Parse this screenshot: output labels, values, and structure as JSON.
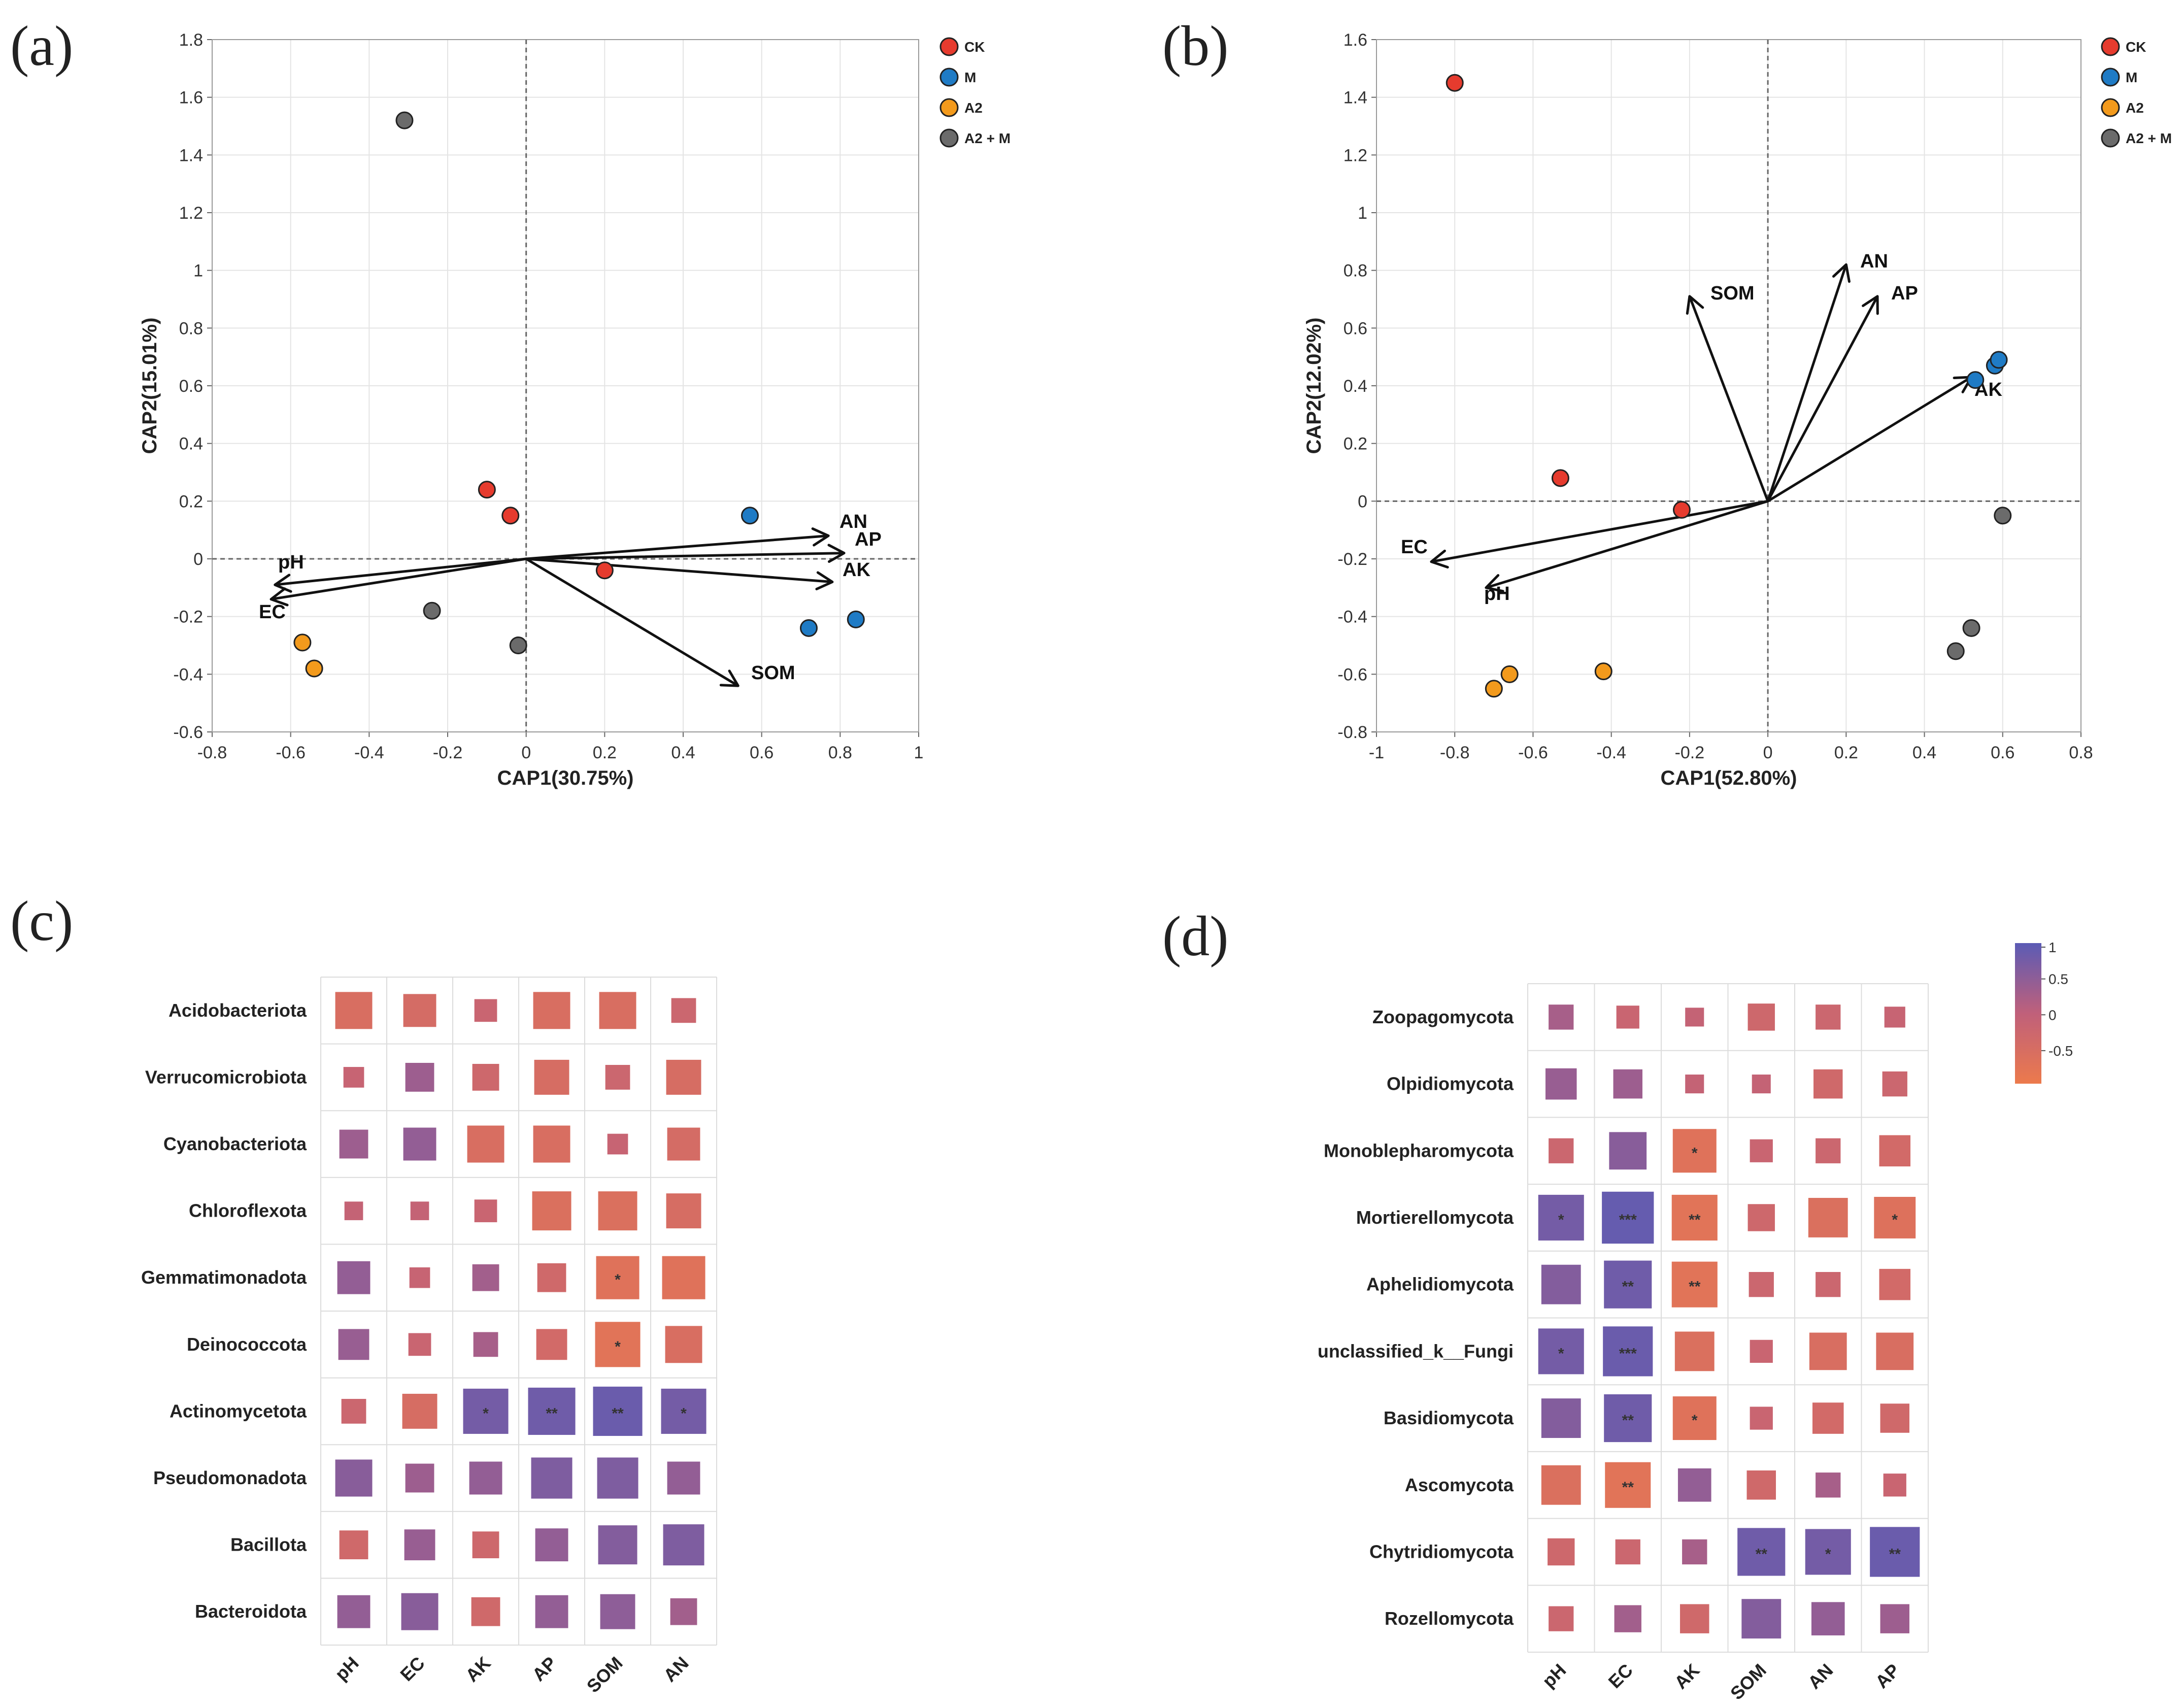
{
  "colors": {
    "CK": "#e63b2e",
    "M": "#1f7bc5",
    "A2": "#f39a1c",
    "A2 + M": "#6b6b6b",
    "neg": "#ec7a4c",
    "mid": "#c0607a",
    "pos": "#5b5bb5"
  },
  "panels": {
    "a": "(a)",
    "b": "(b)",
    "c": "(c)",
    "d": "(d)"
  },
  "chart_data": [
    {
      "id": "a",
      "type": "scatter",
      "xlabel": "CAP1(30.75%)",
      "ylabel": "CAP2(15.01%)",
      "xlim": [
        -0.8,
        1
      ],
      "ylim": [
        -0.6,
        1.8
      ],
      "xticks": [
        "-0.8",
        "-0.6",
        "-0.4",
        "-0.2",
        "0",
        "0.2",
        "0.4",
        "0.6",
        "0.8",
        "1"
      ],
      "yticks": [
        "-0.6",
        "-0.4",
        "-0.2",
        "0",
        "0.2",
        "0.4",
        "0.6",
        "0.8",
        "1",
        "1.2",
        "1.4",
        "1.6",
        "1.8"
      ],
      "legend": [
        "CK",
        "M",
        "A2",
        "A2 + M"
      ],
      "points": [
        {
          "group": "CK",
          "x": -0.1,
          "y": 0.24
        },
        {
          "group": "CK",
          "x": -0.04,
          "y": 0.15
        },
        {
          "group": "CK",
          "x": 0.2,
          "y": -0.04
        },
        {
          "group": "M",
          "x": 0.57,
          "y": 0.15
        },
        {
          "group": "M",
          "x": 0.72,
          "y": -0.24
        },
        {
          "group": "M",
          "x": 0.84,
          "y": -0.21
        },
        {
          "group": "A2",
          "x": -0.57,
          "y": -0.29
        },
        {
          "group": "A2",
          "x": -0.54,
          "y": -0.38
        },
        {
          "group": "A2 + M",
          "x": -0.31,
          "y": 1.52
        },
        {
          "group": "A2 + M",
          "x": -0.24,
          "y": -0.18
        },
        {
          "group": "A2 + M",
          "x": -0.02,
          "y": -0.3
        }
      ],
      "vectors": [
        {
          "label": "AN",
          "x": 0.77,
          "y": 0.08
        },
        {
          "label": "AP",
          "x": 0.81,
          "y": 0.02
        },
        {
          "label": "AK",
          "x": 0.78,
          "y": -0.08
        },
        {
          "label": "SOM",
          "x": 0.54,
          "y": -0.44
        },
        {
          "label": "pH",
          "x": -0.64,
          "y": -0.09
        },
        {
          "label": "EC",
          "x": -0.65,
          "y": -0.14
        }
      ]
    },
    {
      "id": "b",
      "type": "scatter",
      "xlabel": "CAP1(52.80%)",
      "ylabel": "CAP2(12.02%)",
      "xlim": [
        -1,
        0.8
      ],
      "ylim": [
        -0.8,
        1.6
      ],
      "xticks": [
        "-1",
        "-0.8",
        "-0.6",
        "-0.4",
        "-0.2",
        "0",
        "0.2",
        "0.4",
        "0.6",
        "0.8"
      ],
      "yticks": [
        "-0.8",
        "-0.6",
        "-0.4",
        "-0.2",
        "0",
        "0.2",
        "0.4",
        "0.6",
        "0.8",
        "1",
        "1.2",
        "1.4",
        "1.6"
      ],
      "legend": [
        "CK",
        "M",
        "A2",
        "A2 + M"
      ],
      "points": [
        {
          "group": "CK",
          "x": -0.8,
          "y": 1.45
        },
        {
          "group": "CK",
          "x": -0.53,
          "y": 0.08
        },
        {
          "group": "CK",
          "x": -0.22,
          "y": -0.03
        },
        {
          "group": "M",
          "x": 0.53,
          "y": 0.42
        },
        {
          "group": "M",
          "x": 0.58,
          "y": 0.47
        },
        {
          "group": "M",
          "x": 0.59,
          "y": 0.49
        },
        {
          "group": "A2",
          "x": -0.7,
          "y": -0.65
        },
        {
          "group": "A2",
          "x": -0.66,
          "y": -0.6
        },
        {
          "group": "A2",
          "x": -0.42,
          "y": -0.59
        },
        {
          "group": "A2 + M",
          "x": 0.6,
          "y": -0.05
        },
        {
          "group": "A2 + M",
          "x": 0.52,
          "y": -0.44
        },
        {
          "group": "A2 + M",
          "x": 0.48,
          "y": -0.52
        }
      ],
      "vectors": [
        {
          "label": "SOM",
          "x": -0.2,
          "y": 0.71
        },
        {
          "label": "AN",
          "x": 0.2,
          "y": 0.82
        },
        {
          "label": "AP",
          "x": 0.28,
          "y": 0.71
        },
        {
          "label": "AK",
          "x": 0.52,
          "y": 0.43
        },
        {
          "label": "EC",
          "x": -0.86,
          "y": -0.21
        },
        {
          "label": "pH",
          "x": -0.72,
          "y": -0.3
        }
      ]
    },
    {
      "id": "c",
      "type": "heatmap",
      "rows": [
        "Acidobacteriota",
        "Verrucomicrobiota",
        "Cyanobacteriota",
        "Chloroflexota",
        "Gemmatimonadota",
        "Deinococcota",
        "Actinomycetota",
        "Pseudomonadota",
        "Bacillota",
        "Bacteroidota"
      ],
      "cols": [
        "pH",
        "EC",
        "AK",
        "AP",
        "SOM",
        "AN"
      ],
      "values": [
        [
          -0.55,
          -0.45,
          -0.2,
          -0.55,
          -0.55,
          -0.25
        ],
        [
          -0.15,
          0.35,
          -0.3,
          -0.5,
          -0.25,
          -0.5
        ],
        [
          0.35,
          0.45,
          -0.55,
          -0.55,
          -0.15,
          -0.45
        ],
        [
          -0.1,
          -0.1,
          -0.2,
          -0.6,
          -0.6,
          -0.5
        ],
        [
          0.45,
          -0.15,
          0.3,
          -0.35,
          -0.7,
          -0.7
        ],
        [
          0.4,
          -0.2,
          0.25,
          -0.4,
          -0.75,
          -0.55
        ],
        [
          -0.25,
          -0.5,
          0.75,
          0.8,
          0.85,
          0.75
        ],
        [
          0.55,
          0.35,
          0.45,
          0.65,
          0.65,
          0.45
        ],
        [
          -0.35,
          0.4,
          -0.3,
          0.45,
          0.6,
          0.65
        ],
        [
          0.45,
          0.55,
          -0.35,
          0.45,
          0.5,
          0.3
        ]
      ],
      "stars": [
        [
          "",
          "",
          "",
          "",
          "",
          ""
        ],
        [
          "",
          "",
          "",
          "",
          "",
          ""
        ],
        [
          "",
          "",
          "",
          "",
          "",
          ""
        ],
        [
          "",
          "",
          "",
          "",
          "",
          ""
        ],
        [
          "",
          "",
          "",
          "",
          "*",
          ""
        ],
        [
          "",
          "",
          "",
          "",
          "*",
          ""
        ],
        [
          "",
          "",
          "*",
          "**",
          "**",
          "*"
        ],
        [
          "",
          "",
          "",
          "",
          "",
          ""
        ],
        [
          "",
          "",
          "",
          "",
          "",
          ""
        ],
        [
          "",
          "",
          "",
          "",
          "",
          ""
        ]
      ]
    },
    {
      "id": "d",
      "type": "heatmap",
      "rows": [
        "Zoopagomycota",
        "Olpidiomycota",
        "Monoblepharomycota",
        "Mortierellomycota",
        "Aphelidiomycota",
        "unclassified_k__Fungi",
        "Basidiomycota",
        "Ascomycota",
        "Chytridiomycota",
        "Rozellomycota"
      ],
      "cols": [
        "pH",
        "EC",
        "AK",
        "SOM",
        "AN",
        "AP"
      ],
      "values": [
        [
          0.25,
          -0.2,
          -0.1,
          -0.3,
          -0.25,
          -0.15
        ],
        [
          0.4,
          0.35,
          -0.1,
          -0.1,
          -0.35,
          -0.25
        ],
        [
          -0.25,
          0.55,
          -0.7,
          -0.2,
          -0.25,
          -0.4
        ],
        [
          0.75,
          0.9,
          -0.75,
          -0.3,
          -0.6,
          -0.65
        ],
        [
          0.6,
          0.8,
          -0.75,
          -0.25,
          -0.25,
          -0.4
        ],
        [
          0.75,
          0.85,
          -0.6,
          -0.2,
          -0.55,
          -0.55
        ],
        [
          0.6,
          0.8,
          -0.7,
          -0.2,
          -0.4,
          -0.35
        ],
        [
          -0.6,
          -0.75,
          0.45,
          -0.35,
          0.25,
          -0.2
        ],
        [
          -0.3,
          -0.25,
          0.25,
          0.8,
          0.75,
          0.85
        ],
        [
          -0.25,
          0.3,
          -0.35,
          0.6,
          0.45,
          0.35
        ]
      ],
      "stars": [
        [
          "",
          "",
          "",
          "",
          "",
          ""
        ],
        [
          "",
          "",
          "",
          "",
          "",
          ""
        ],
        [
          "",
          "",
          "*",
          "",
          "",
          ""
        ],
        [
          "*",
          "***",
          "**",
          "",
          "",
          "*"
        ],
        [
          "",
          "**",
          "**",
          "",
          "",
          ""
        ],
        [
          "*",
          "***",
          "",
          "",
          "",
          ""
        ],
        [
          "",
          "**",
          "*",
          "",
          "",
          ""
        ],
        [
          "",
          "**",
          "",
          "",
          "",
          ""
        ],
        [
          "",
          "",
          "",
          "**",
          "*",
          "**"
        ],
        [
          "",
          "",
          "",
          "",
          "",
          ""
        ]
      ],
      "colorbar": {
        "ticks": [
          "1",
          "0.5",
          "0",
          "-0.5"
        ]
      }
    }
  ]
}
